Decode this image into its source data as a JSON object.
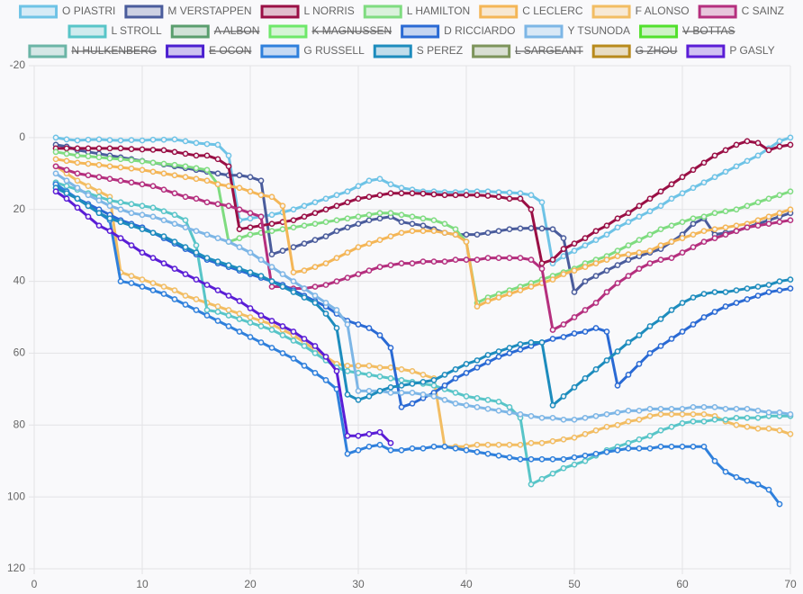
{
  "chart_data": {
    "type": "line",
    "x": [
      2,
      3,
      4,
      5,
      6,
      7,
      8,
      9,
      10,
      11,
      12,
      13,
      14,
      15,
      16,
      17,
      18,
      19,
      20,
      21,
      22,
      23,
      24,
      25,
      26,
      27,
      28,
      29,
      30,
      31,
      32,
      33,
      34,
      35,
      36,
      37,
      38,
      39,
      40,
      41,
      42,
      43,
      44,
      45,
      46,
      47,
      48,
      49,
      50,
      51,
      52,
      53,
      54,
      55,
      56,
      57,
      58,
      59,
      60,
      61,
      62,
      63,
      64,
      65,
      66,
      67,
      68,
      69,
      70
    ],
    "xlim": [
      0,
      70
    ],
    "xticks": [
      0,
      10,
      20,
      30,
      40,
      50,
      60,
      70
    ],
    "ylim": [
      -20,
      120
    ],
    "y_inverted": true,
    "yticks": [
      -20,
      0,
      20,
      40,
      60,
      80,
      100,
      120
    ],
    "grid": true,
    "legend": "top",
    "series": [
      {
        "name": "O PIASTRI",
        "color": "#6ec3e6",
        "values": [
          0,
          0.5,
          0.8,
          0.6,
          0.5,
          0.7,
          0.8,
          0.7,
          0.8,
          0.6,
          0.6,
          0.5,
          1,
          1.5,
          1.8,
          2,
          5,
          23,
          22.5,
          22,
          21.5,
          20.8,
          20,
          19,
          18,
          17,
          16,
          15,
          13.5,
          12,
          11.5,
          13,
          14,
          14.5,
          15,
          15,
          15.2,
          15.2,
          15,
          15,
          15,
          15.2,
          15.3,
          15.5,
          16,
          18,
          35,
          33,
          31.5,
          30,
          28.5,
          27,
          25,
          23.5,
          22,
          20.5,
          19,
          17,
          15.5,
          14,
          12.5,
          11,
          9.5,
          8,
          6.5,
          5,
          3,
          1,
          0
        ]
      },
      {
        "name": "M VERSTAPPEN",
        "color": "#4a5c9c",
        "values": [
          2,
          2.5,
          3.5,
          4,
          4.5,
          5,
          5.5,
          6,
          6.5,
          7,
          7.5,
          8,
          8.5,
          9,
          9.5,
          10,
          10.5,
          10.5,
          11,
          12,
          32.5,
          31.5,
          30.5,
          29.5,
          28.5,
          27.5,
          26,
          25,
          24,
          23,
          22.5,
          22,
          23.5,
          24,
          24.5,
          25.5,
          26.5,
          27,
          27,
          27,
          26.5,
          26,
          25.5,
          25.3,
          25.2,
          25.3,
          25.5,
          28,
          43,
          40,
          38.5,
          37,
          35.5,
          34,
          33,
          32,
          31,
          29,
          27,
          24,
          22.5,
          27,
          26.5,
          26,
          25,
          24,
          23,
          22,
          21
        ]
      },
      {
        "name": "L NORRIS",
        "color": "#9a0f45",
        "values": [
          3,
          3,
          3,
          3,
          3,
          3,
          3,
          3.2,
          3.3,
          3.4,
          3.5,
          4,
          4.5,
          5,
          5,
          6,
          8,
          25.5,
          25,
          24.5,
          24,
          23.5,
          23,
          22,
          21,
          20,
          19,
          18,
          17,
          16.5,
          16,
          15.5,
          15.5,
          15.5,
          15.6,
          15.8,
          16,
          16,
          16,
          16,
          16.2,
          16.5,
          17,
          17,
          20,
          35,
          34,
          31,
          29.5,
          28,
          26,
          24.5,
          22.5,
          21,
          19,
          17,
          15,
          13,
          11,
          9,
          7,
          5,
          3.5,
          2,
          1,
          1.5,
          3.5,
          2.5,
          2
        ]
      },
      {
        "name": "L HAMILTON",
        "color": "#7fdc80",
        "values": [
          4,
          4.5,
          5,
          5.2,
          5.5,
          5.8,
          6,
          6.3,
          6.6,
          7,
          7.3,
          7.6,
          8,
          8.5,
          9,
          13,
          29,
          28,
          27,
          26.5,
          26,
          25.5,
          25,
          24.5,
          24,
          23.5,
          23,
          22.5,
          22,
          21.5,
          21,
          21,
          21.5,
          22,
          22.5,
          23,
          24,
          25.5,
          29,
          46,
          44.5,
          43.5,
          42.5,
          41.5,
          40.5,
          39.5,
          38.5,
          37.5,
          36.5,
          35,
          34,
          33,
          31.5,
          30,
          28.5,
          27,
          25.5,
          24.5,
          23.5,
          22.5,
          22,
          21,
          20.5,
          20,
          19,
          18,
          17,
          16,
          15
        ]
      },
      {
        "name": "C LECLERC",
        "color": "#f4b657",
        "values": [
          6,
          6.5,
          7,
          7.3,
          7.6,
          8,
          8.3,
          8.6,
          9,
          9.5,
          10,
          10.5,
          11,
          11.5,
          12,
          13,
          13.5,
          14,
          15,
          16,
          16.5,
          19,
          37.5,
          37,
          36,
          35,
          33.5,
          32,
          30.5,
          29.5,
          28.5,
          27.5,
          26.5,
          26,
          26,
          26,
          26.5,
          27,
          29,
          47,
          45.5,
          44.5,
          43.5,
          42.5,
          41.5,
          40.5,
          39.5,
          38,
          37,
          36,
          35,
          34,
          33,
          32.5,
          32,
          31.5,
          30,
          29,
          28,
          27,
          26,
          25.5,
          25,
          24.5,
          24,
          23,
          22,
          21,
          20
        ]
      },
      {
        "name": "F ALONSO",
        "color": "#f2bd63",
        "values": [
          8,
          10,
          12,
          13.5,
          15,
          16.5,
          37.5,
          38.5,
          39.5,
          40.5,
          41.5,
          42.5,
          44,
          45,
          46,
          47,
          48,
          49,
          50,
          51,
          52,
          53.5,
          55,
          57,
          59,
          61,
          63,
          63.5,
          63.5,
          63.5,
          64,
          64,
          64.5,
          65,
          66,
          67,
          86,
          86,
          86,
          85.5,
          85.5,
          85.5,
          85.5,
          85.5,
          85,
          85,
          84.5,
          84,
          83.5,
          82.5,
          81.5,
          80.5,
          80,
          79,
          78.5,
          77.5,
          77,
          77,
          77,
          77,
          77,
          77.5,
          79,
          80,
          80.5,
          81,
          81,
          81.5,
          82.5
        ]
      },
      {
        "name": "C SAINZ",
        "color": "#b52f7e",
        "values": [
          8,
          9,
          10,
          10.5,
          11,
          11.5,
          12,
          12.5,
          13,
          13.5,
          14.5,
          15.5,
          16.5,
          17,
          18,
          18.5,
          19,
          20,
          21,
          22,
          41.5,
          41.5,
          42,
          42,
          41.5,
          41,
          40,
          39,
          38,
          37,
          36,
          35.5,
          35,
          35,
          34.5,
          34.5,
          34.5,
          34,
          34,
          34,
          33.5,
          33.5,
          33.5,
          33.5,
          34,
          36.5,
          53.5,
          52,
          50,
          48,
          46,
          43,
          40.5,
          38.5,
          36.5,
          35,
          34,
          33.5,
          32,
          30.5,
          29,
          28,
          27,
          26,
          25,
          24.5,
          24,
          23.5,
          23
        ]
      },
      {
        "name": "L STROLL",
        "color": "#58c5c8",
        "values": [
          12.5,
          13.5,
          14.5,
          15.5,
          16.5,
          17.5,
          18,
          18.5,
          19,
          19.5,
          20.5,
          21.5,
          23,
          30,
          48,
          48.5,
          49.5,
          50.5,
          51.5,
          52.5,
          53.5,
          55,
          56.5,
          58,
          60,
          62,
          64,
          65,
          65.5,
          66,
          66.5,
          67,
          67.5,
          68,
          68.5,
          69,
          70,
          71,
          72,
          72.5,
          73,
          73.5,
          75,
          78,
          96.5,
          95,
          93.5,
          92,
          91,
          90,
          88.5,
          87,
          86,
          85,
          84,
          83,
          81.5,
          80.5,
          79.5,
          79,
          79,
          78.5,
          78.5,
          78,
          78,
          78,
          77.5,
          77.5,
          77.5
        ]
      },
      {
        "name": "A ALBON",
        "color": "#5a9e6e",
        "hidden": true
      },
      {
        "name": "K MAGNUSSEN",
        "color": "#6ee86a",
        "hidden": true
      },
      {
        "name": "D RICCIARDO",
        "color": "#2a6ad4",
        "values": [
          13,
          15,
          17,
          18.5,
          20,
          21.5,
          23,
          24,
          25,
          26.5,
          28,
          29.5,
          31,
          32.5,
          34,
          35,
          36,
          37,
          38,
          39,
          40,
          41,
          42.5,
          44,
          45.5,
          47,
          49,
          51,
          52,
          53,
          55,
          58.5,
          75,
          74,
          72.5,
          71,
          69,
          67,
          65.5,
          64,
          62.5,
          61,
          60,
          59,
          58,
          57,
          56,
          55.5,
          54.5,
          54,
          53,
          54,
          69,
          66,
          63,
          60,
          58,
          56,
          54,
          52,
          50,
          48.5,
          47,
          46,
          45,
          44,
          43,
          42.5,
          42
        ]
      },
      {
        "name": "Y TSUNODA",
        "color": "#7db6e6",
        "values": [
          10,
          12,
          14,
          16,
          17.5,
          19,
          20,
          21,
          21.5,
          22,
          23,
          24,
          25,
          26,
          27,
          28,
          29,
          30.5,
          32,
          34,
          36,
          38,
          40,
          42,
          44,
          46,
          48,
          52,
          70.5,
          70.5,
          70.5,
          71,
          71,
          71,
          71.5,
          72,
          73,
          74,
          74.5,
          75,
          75.5,
          76,
          76.5,
          77,
          77.5,
          78,
          78,
          78.5,
          78.5,
          78,
          77.5,
          77,
          76.5,
          76,
          76,
          75.5,
          75.5,
          75.5,
          75.5,
          75,
          75,
          75,
          75.5,
          75.5,
          75.5,
          76,
          76.5,
          76.5,
          77
        ]
      },
      {
        "name": "V BOTTAS",
        "color": "#52e02c",
        "hidden": true
      },
      {
        "name": "N HULKENBERG",
        "color": "#6bb5a6",
        "hidden": true
      },
      {
        "name": "E OCON",
        "color": "#4b1fd0",
        "hidden": true
      },
      {
        "name": "G RUSSELL",
        "color": "#2f80dc",
        "values": [
          13,
          15,
          17,
          19,
          21,
          23,
          40,
          40.5,
          41.5,
          42.5,
          43.5,
          45,
          46.5,
          48,
          49.5,
          51,
          52.5,
          54,
          55.5,
          57,
          58.5,
          60,
          61.5,
          63.5,
          65.5,
          67.5,
          70,
          88,
          87,
          86,
          85.5,
          87,
          87,
          86.5,
          86.5,
          86,
          86,
          86.5,
          87,
          87.5,
          88,
          88.5,
          89,
          89.5,
          89.5,
          89.5,
          89.5,
          89.5,
          89,
          88.5,
          88,
          87.5,
          87,
          86.5,
          86.5,
          86.5,
          86,
          86,
          86,
          86,
          86,
          90,
          93,
          94.5,
          95.5,
          96.5,
          98,
          102,
          null
        ]
      },
      {
        "name": "S PEREZ",
        "color": "#1d8cbd",
        "values": [
          14,
          15.5,
          17,
          19,
          21,
          22.5,
          23.5,
          24.5,
          25.5,
          26.5,
          27.5,
          29,
          30.5,
          32,
          33.5,
          34.5,
          35.5,
          36.5,
          37.5,
          38.5,
          40,
          41.5,
          43,
          44.5,
          46,
          49,
          53,
          71.5,
          73,
          72,
          70.5,
          69.5,
          69,
          68.5,
          68,
          67.5,
          66,
          64.5,
          63,
          62,
          60.5,
          59.5,
          58.5,
          57.5,
          57,
          57,
          74.5,
          72,
          69.5,
          67,
          64.5,
          62,
          59.5,
          57,
          55,
          52.5,
          50.5,
          48,
          46,
          44.5,
          43.5,
          43,
          43,
          42.5,
          42,
          41.5,
          41,
          40,
          39.5
        ]
      },
      {
        "name": "L SARGEANT",
        "color": "#7d945b",
        "hidden": true
      },
      {
        "name": "G ZHOU",
        "color": "#b88a1c",
        "hidden": true
      },
      {
        "name": "P GASLY",
        "color": "#5a1dd6",
        "values": [
          15,
          17,
          19.5,
          22,
          24.5,
          26,
          28,
          30,
          32,
          33.5,
          35,
          36.5,
          38,
          39.5,
          41,
          42.5,
          44,
          45.5,
          47.5,
          49.5,
          51,
          52.5,
          54,
          56,
          58,
          61,
          65,
          83,
          83,
          82.5,
          82,
          85,
          null,
          null,
          null,
          null,
          null,
          null,
          null,
          null,
          null,
          null,
          null,
          null,
          null,
          null,
          null,
          null,
          null,
          null,
          null,
          null,
          null,
          null,
          null,
          null,
          null,
          null,
          null,
          null,
          null,
          null,
          null,
          null,
          null,
          null,
          null,
          null,
          null
        ]
      }
    ]
  }
}
